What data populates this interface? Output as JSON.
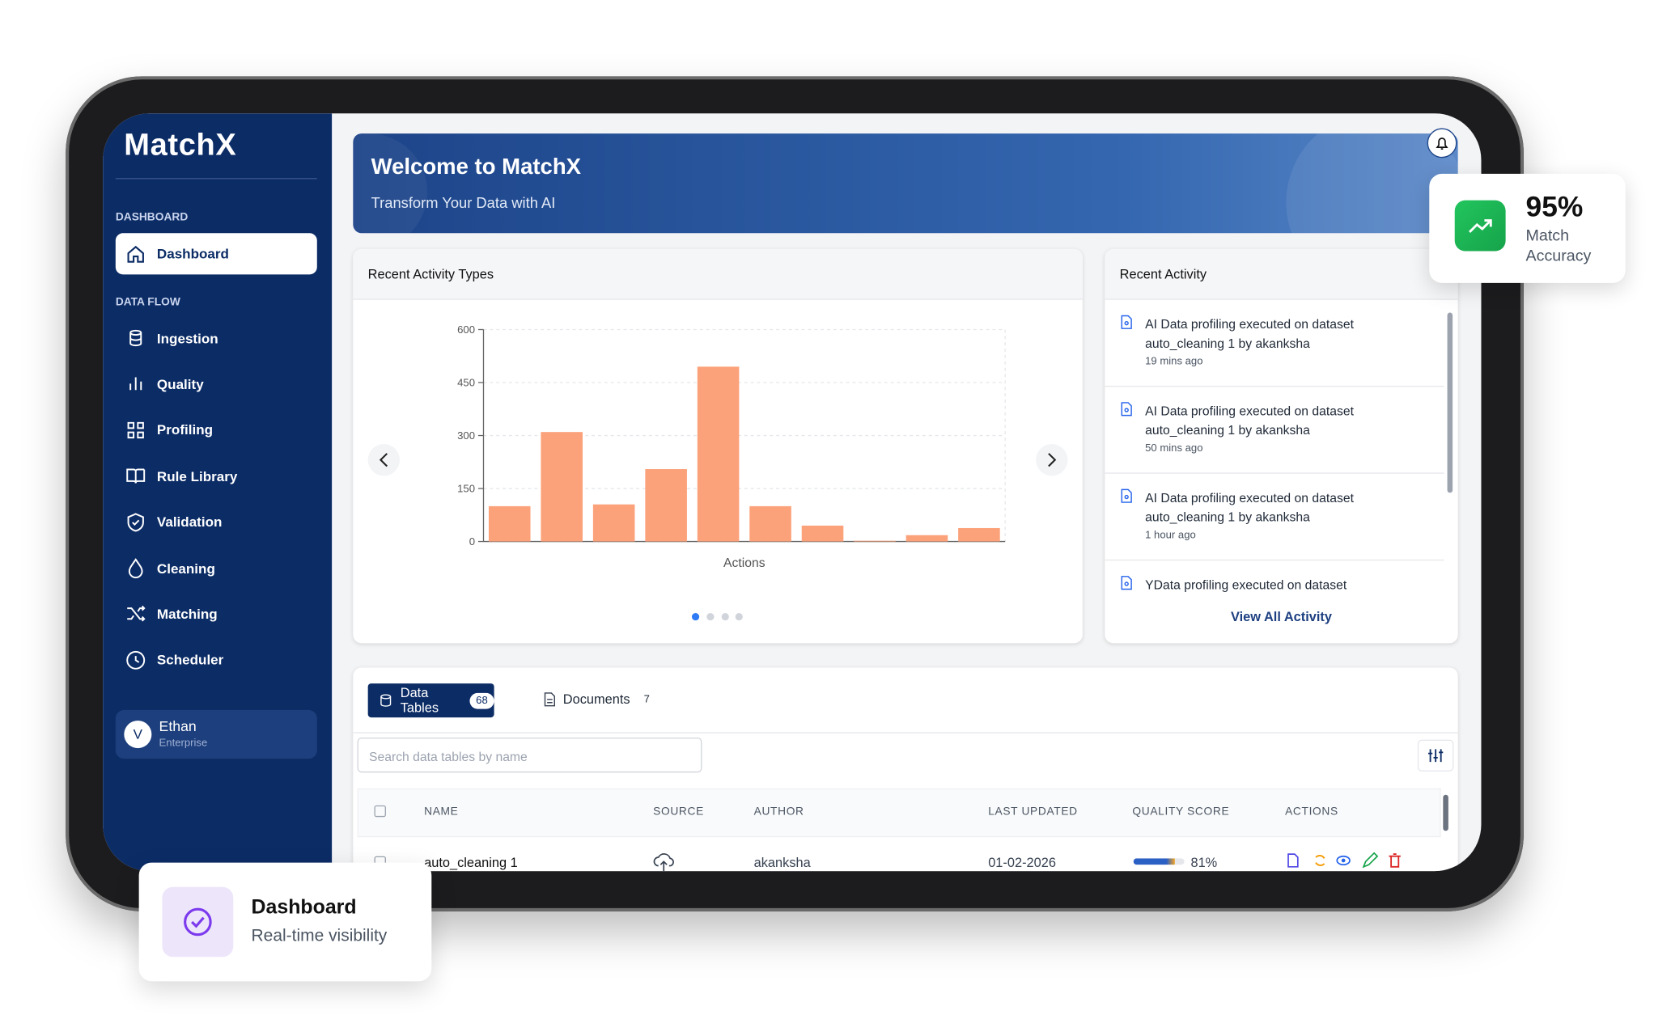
{
  "sidebar": {
    "logo": "MatchX",
    "sections": [
      {
        "title": "DASHBOARD",
        "items": [
          "Dashboard"
        ]
      },
      {
        "title": "DATA FLOW",
        "items": [
          "Ingestion",
          "Quality",
          "Profiling",
          "Rule Library",
          "Validation",
          "Cleaning",
          "Matching",
          "Scheduler"
        ]
      }
    ],
    "user": {
      "initial": "V",
      "name": "Ethan",
      "plan": "Enterprise"
    }
  },
  "banner": {
    "title": "Welcome to MatchX",
    "subtitle": "Transform Your Data with AI"
  },
  "chart_data": {
    "type": "bar",
    "title": "Recent Activity Types",
    "xlabel": "Actions",
    "categories": [
      null,
      null,
      null,
      null,
      null,
      null,
      null,
      null,
      null,
      null
    ],
    "values": [
      100,
      310,
      105,
      205,
      495,
      100,
      45,
      2,
      18,
      38
    ],
    "color": "#fca27a",
    "ylim": [
      0,
      600
    ],
    "yticks": [
      0,
      150,
      300,
      450,
      600
    ],
    "grid": true
  },
  "activity": {
    "title": "Recent Activity",
    "items": [
      {
        "text": "AI Data profiling executed on dataset auto_cleaning 1 by akanksha",
        "time": "19 mins ago"
      },
      {
        "text": "AI Data profiling executed on dataset auto_cleaning 1 by akanksha",
        "time": "50 mins ago"
      },
      {
        "text": "AI Data profiling executed on dataset auto_cleaning 1 by akanksha",
        "time": "1 hour ago"
      },
      {
        "text": "YData profiling executed on dataset"
      }
    ],
    "link": "View All Activity"
  },
  "stat": {
    "value": "95%",
    "label": "Match Accuracy"
  },
  "tables": {
    "tabs": [
      {
        "label": "Data Tables",
        "count": 68
      },
      {
        "label": "Documents",
        "count": 7
      }
    ],
    "search": "Search data tables by name",
    "columns": [
      "NAME",
      "SOURCE",
      "AUTHOR",
      "LAST UPDATED",
      "QUALITY SCORE",
      "ACTIONS"
    ],
    "rows": [
      {
        "name": "auto_cleaning 1",
        "author": "akanksha",
        "updated": "01-02-2026",
        "quality": 81,
        "quality_label": "81%"
      }
    ]
  },
  "badge": {
    "title": "Dashboard",
    "subtitle": "Real-time visibility"
  }
}
